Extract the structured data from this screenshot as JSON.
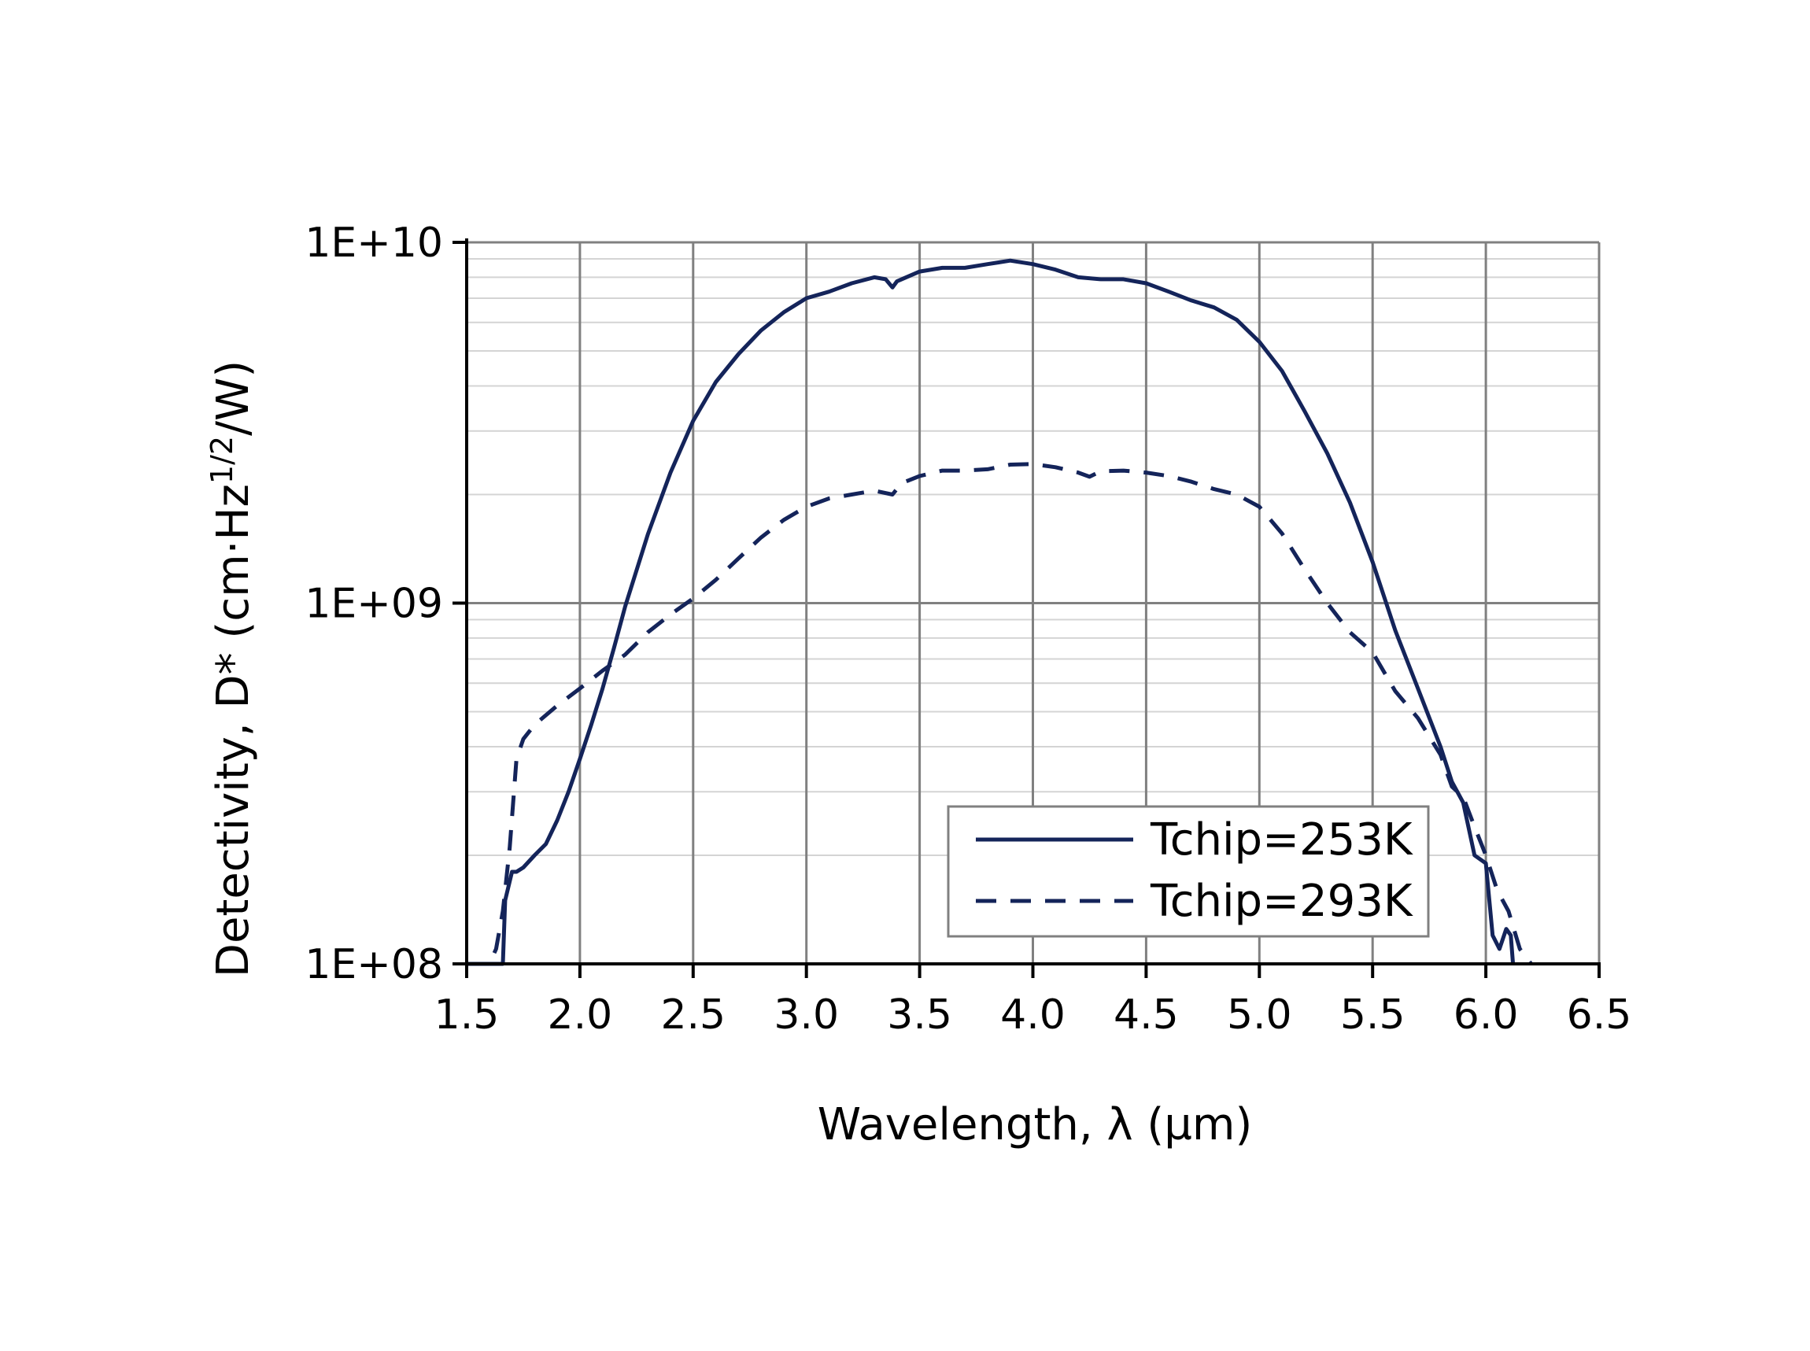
{
  "chart_data": {
    "type": "line",
    "title": "",
    "xlabel": "Wavelength, λ (µm)",
    "ylabel_main": "Detectivity, D* (cm·Hz",
    "ylabel_sup": "1/2",
    "ylabel_end": "/W)",
    "xlim": [
      1.5,
      6.5
    ],
    "ylim": [
      100000000,
      10000000000
    ],
    "yscale": "log",
    "grid": true,
    "legend_position": "bottom-right",
    "x_ticks": [
      "1.5",
      "2.0",
      "2.5",
      "3.0",
      "3.5",
      "4.0",
      "4.5",
      "5.0",
      "5.5",
      "6.0",
      "6.5"
    ],
    "x_tick_values": [
      1.5,
      2.0,
      2.5,
      3.0,
      3.5,
      4.0,
      4.5,
      5.0,
      5.5,
      6.0,
      6.5
    ],
    "y_ticks": [
      "1E+08",
      "1E+09",
      "1E+10"
    ],
    "y_tick_values": [
      100000000,
      1000000000,
      10000000000
    ],
    "colors": {
      "series": "#14245a",
      "grid_major": "#808080",
      "grid_minor": "#d4d4d4",
      "axis": "#000000"
    },
    "series": [
      {
        "name": "Tchip=253K",
        "style": "solid",
        "x": [
          1.5,
          1.66,
          1.67,
          1.7,
          1.72,
          1.75,
          1.8,
          1.85,
          1.9,
          1.95,
          2.0,
          2.05,
          2.1,
          2.15,
          2.2,
          2.3,
          2.4,
          2.5,
          2.6,
          2.7,
          2.8,
          2.9,
          3.0,
          3.1,
          3.2,
          3.3,
          3.35,
          3.38,
          3.4,
          3.5,
          3.6,
          3.7,
          3.8,
          3.9,
          4.0,
          4.1,
          4.2,
          4.3,
          4.4,
          4.5,
          4.6,
          4.7,
          4.8,
          4.9,
          5.0,
          5.1,
          5.2,
          5.3,
          5.4,
          5.5,
          5.6,
          5.7,
          5.8,
          5.85,
          5.9,
          5.95,
          6.0,
          6.03,
          6.06,
          6.09,
          6.11,
          6.12
        ],
        "values": [
          100000000,
          100000000,
          150000000,
          180000000,
          180000000,
          185000000,
          200000000,
          215000000,
          250000000,
          300000000,
          370000000,
          460000000,
          580000000,
          750000000,
          980000000,
          1550000000,
          2300000000,
          3200000000,
          4100000000,
          4900000000,
          5700000000,
          6400000000,
          7000000000,
          7300000000,
          7700000000,
          8000000000,
          7900000000,
          7500000000,
          7800000000,
          8300000000,
          8500000000,
          8500000000,
          8700000000,
          8900000000,
          8700000000,
          8400000000,
          8000000000,
          7900000000,
          7900000000,
          7700000000,
          7300000000,
          6900000000,
          6600000000,
          6100000000,
          5300000000,
          4400000000,
          3400000000,
          2600000000,
          1900000000,
          1300000000,
          840000000,
          580000000,
          400000000,
          320000000,
          280000000,
          200000000,
          190000000,
          120000000,
          110000000,
          125000000,
          120000000,
          100000000
        ]
      },
      {
        "name": "Tchip=293K",
        "style": "dashed",
        "x": [
          1.5,
          1.6,
          1.63,
          1.66,
          1.69,
          1.72,
          1.75,
          1.8,
          1.9,
          2.0,
          2.1,
          2.2,
          2.3,
          2.4,
          2.5,
          2.6,
          2.7,
          2.8,
          2.9,
          3.0,
          3.1,
          3.2,
          3.3,
          3.38,
          3.42,
          3.5,
          3.6,
          3.7,
          3.8,
          3.9,
          4.0,
          4.1,
          4.2,
          4.25,
          4.3,
          4.4,
          4.5,
          4.6,
          4.7,
          4.8,
          4.9,
          5.0,
          5.1,
          5.2,
          5.3,
          5.4,
          5.5,
          5.6,
          5.7,
          5.8,
          5.85,
          5.9,
          5.95,
          6.0,
          6.05,
          6.1,
          6.15,
          6.2
        ],
        "values": [
          100000000,
          100000000,
          110000000,
          140000000,
          210000000,
          370000000,
          420000000,
          460000000,
          520000000,
          580000000,
          650000000,
          720000000,
          830000000,
          930000000,
          1030000000,
          1160000000,
          1330000000,
          1520000000,
          1700000000,
          1850000000,
          1950000000,
          2000000000,
          2050000000,
          2000000000,
          2150000000,
          2250000000,
          2330000000,
          2330000000,
          2350000000,
          2420000000,
          2430000000,
          2380000000,
          2300000000,
          2240000000,
          2320000000,
          2330000000,
          2300000000,
          2250000000,
          2170000000,
          2070000000,
          2000000000,
          1850000000,
          1560000000,
          1240000000,
          1000000000,
          830000000,
          730000000,
          570000000,
          480000000,
          380000000,
          310000000,
          290000000,
          240000000,
          200000000,
          160000000,
          140000000,
          110000000,
          100000000
        ]
      }
    ]
  }
}
